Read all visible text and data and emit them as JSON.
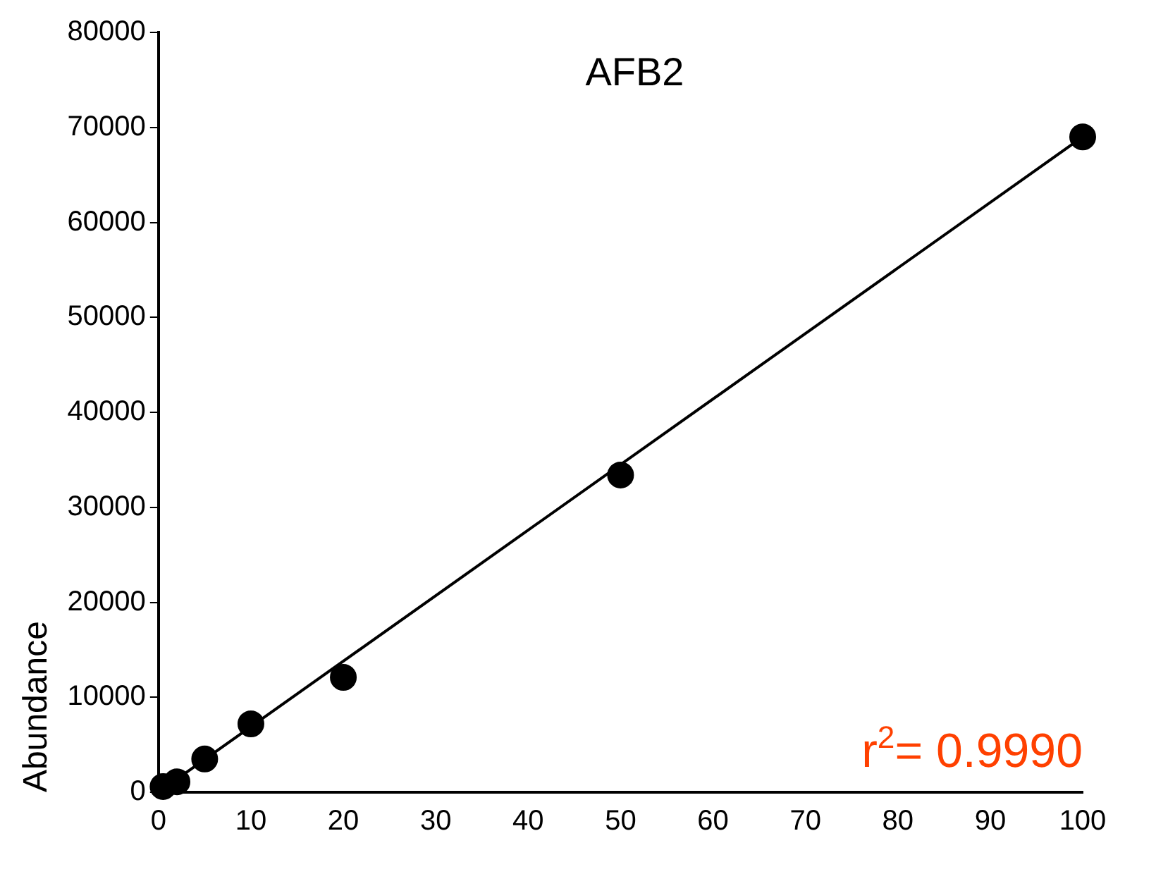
{
  "chart_data": {
    "type": "scatter",
    "title": "AFB2",
    "ylabel": "Abundance",
    "annotations": [
      "r$^{2}$= 0.9990"
    ],
    "series": [
      {
        "marker": "circle",
        "color": "#000000",
        "x": [
          0.5,
          2,
          5,
          10,
          20,
          50,
          100
        ],
        "values": [
          600,
          1100,
          3500,
          7200,
          12100,
          33400,
          69000
        ]
      },
      {
        "type": "line",
        "marker": "none",
        "color": "#000000",
        "x": [
          0,
          100
        ],
        "values": [
          0,
          69000
        ]
      }
    ],
    "xlim": [
      0,
      100
    ],
    "xticks": [
      0,
      10,
      20,
      30,
      40,
      50,
      60,
      70,
      80,
      90,
      100
    ],
    "ylim": [
      0,
      80000
    ],
    "yticks": [
      0,
      10000,
      20000,
      30000,
      40000,
      50000,
      60000,
      70000,
      80000
    ],
    "grid": false,
    "legend": false,
    "line_style": "solid"
  }
}
